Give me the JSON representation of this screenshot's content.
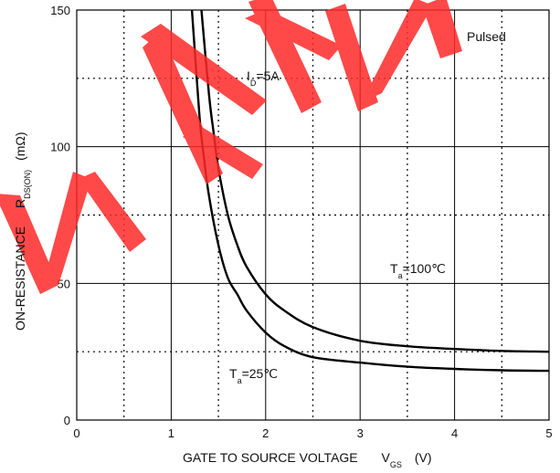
{
  "chart_data": {
    "type": "line",
    "xlabel": "GATE TO SOURCE VOLTAGE",
    "xlabel_symbol": "V",
    "xlabel_symbol_sub": "GS",
    "xlabel_unit": "(V)",
    "ylabel": "ON-RESISTANCE",
    "ylabel_symbol": "R",
    "ylabel_symbol_sub": "DS(ON)",
    "ylabel_unit": "(mΩ)",
    "xlim": [
      0,
      5
    ],
    "ylim": [
      0,
      150
    ],
    "x_ticks": [
      "0",
      "1",
      "2",
      "3",
      "4",
      "5"
    ],
    "y_ticks": [
      "0",
      "50",
      "100",
      "150"
    ],
    "grid": true,
    "annotations": [
      {
        "main": "I",
        "sub": "D",
        "rest": "=5A"
      },
      {
        "main": "T",
        "sub": "a",
        "rest": "=100℃"
      },
      {
        "main": "T",
        "sub": "a",
        "rest": "=25℃"
      },
      {
        "main": "Pulsed",
        "sub": "",
        "rest": ""
      }
    ],
    "series": [
      {
        "name": "",
        "x": [
          1.32,
          1.4,
          1.45,
          1.5,
          1.6,
          1.7,
          1.8,
          2.0,
          2.2,
          2.5,
          3.0,
          3.5,
          4.0,
          4.5,
          5.0
        ],
        "y": [
          150,
          119,
          105,
          92,
          75,
          64,
          56,
          46,
          40,
          34,
          29,
          27,
          26,
          25.3,
          25
        ]
      },
      {
        "name": "",
        "x": [
          1.22,
          1.3,
          1.35,
          1.4,
          1.5,
          1.6,
          1.7,
          1.8,
          2.0,
          2.2,
          2.5,
          3.0,
          3.5,
          4.0,
          4.5,
          5.0
        ],
        "y": [
          150,
          111,
          95,
          82,
          64,
          52,
          46,
          40,
          32,
          27,
          23,
          21,
          19.5,
          18.7,
          18.2,
          18
        ]
      }
    ],
    "watermark": "WENEI",
    "colors": {
      "curve": "#000000",
      "grid": "#000000",
      "watermark": "#ff2a2a"
    }
  }
}
